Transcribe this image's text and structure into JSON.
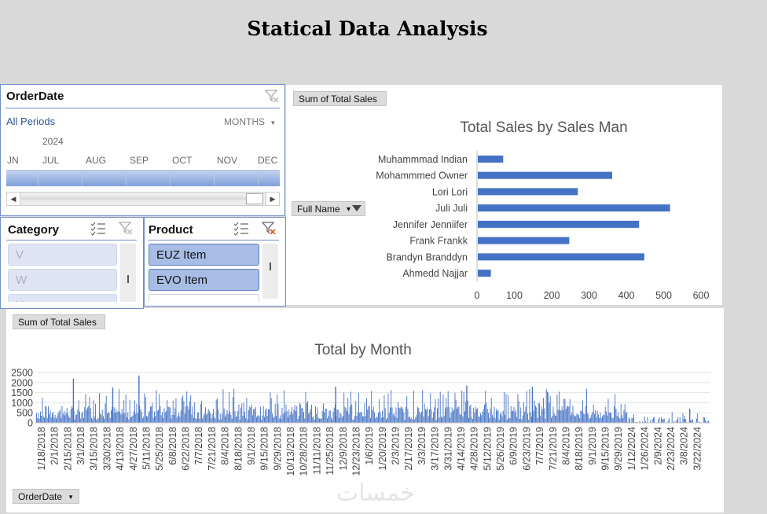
{
  "title": "Statical Data Analysis",
  "timeline": {
    "header": "OrderDate",
    "period_label": "All Periods",
    "level": "MONTHS",
    "year": "2024",
    "months": [
      "JN",
      "JUL",
      "AUG",
      "SEP",
      "OCT",
      "NOV",
      "DEC"
    ]
  },
  "category_slicer": {
    "header": "Category",
    "items": [
      "V",
      "W",
      "X"
    ]
  },
  "product_slicer": {
    "header": "Product",
    "items": [
      "EUZ Item",
      "EVO Item",
      ""
    ]
  },
  "sales_chart": {
    "field_button": "Sum of Total Sales",
    "axis_button": "Full Name",
    "chart_data": {
      "type": "bar",
      "title": "Total Sales by Sales Man",
      "categories": [
        "Muhammmad Indian",
        "Mohammmed Owner",
        "Lori Lori",
        "Juli Juli",
        "Jennifer Jenniifer",
        "Frank Frankk",
        "Brandyn Branddyn",
        "Ahmedd Najjar"
      ],
      "values": [
        68,
        360,
        268,
        515,
        432,
        245,
        446,
        35
      ],
      "xlim": [
        0,
        600
      ],
      "xticks": [
        "0",
        "100",
        "200",
        "300",
        "400",
        "500",
        "600"
      ],
      "color": "#4472c4"
    }
  },
  "month_chart": {
    "field_button": "Sum of Total Sales",
    "axis_button": "OrderDate",
    "chart_data": {
      "type": "bar",
      "title": "Total by Month",
      "ylim": [
        0,
        2500
      ],
      "yticks": [
        "0",
        "500",
        "1000",
        "1500",
        "2000",
        "2500"
      ],
      "xtick_labels": [
        "1/18/2018",
        "2/1/2018",
        "2/15/2018",
        "3/1/2018",
        "3/15/2018",
        "3/30/2018",
        "4/13/2018",
        "4/27/2018",
        "5/11/2018",
        "5/25/2018",
        "6/8/2018",
        "6/22/2018",
        "7/7/2018",
        "7/21/2018",
        "8/4/2018",
        "8/18/2018",
        "9/1/2018",
        "9/15/2018",
        "9/29/2018",
        "10/13/2018",
        "10/28/2018",
        "11/11/2018",
        "11/25/2018",
        "12/9/2018",
        "12/23/2018",
        "1/6/2019",
        "1/20/2019",
        "2/3/2019",
        "2/17/2019",
        "3/3/2019",
        "3/17/2019",
        "3/31/2019",
        "4/14/2019",
        "4/28/2019",
        "5/12/2019",
        "5/26/2019",
        "6/9/2019",
        "6/23/2019",
        "7/7/2019",
        "7/21/2019",
        "8/4/2019",
        "8/18/2019",
        "9/1/2019",
        "9/15/2019",
        "9/29/2019",
        "1/12/2024",
        "1/26/2024",
        "2/9/2024",
        "2/23/2024",
        "3/8/2024",
        "3/22/2024"
      ],
      "peaks": [
        {
          "label": "2/15/2018",
          "value": 2200
        },
        {
          "label": "3/30/2018",
          "value": 1750
        },
        {
          "label": "4/27/2018",
          "value": 2350
        },
        {
          "label": "11/25/2018",
          "value": 1800
        },
        {
          "label": "4/14/2019",
          "value": 1850
        },
        {
          "label": "6/23/2019",
          "value": 1800
        },
        {
          "label": "3/8/2024",
          "value": 700
        }
      ],
      "color": "#4472c4"
    }
  },
  "watermark": "خمسات"
}
